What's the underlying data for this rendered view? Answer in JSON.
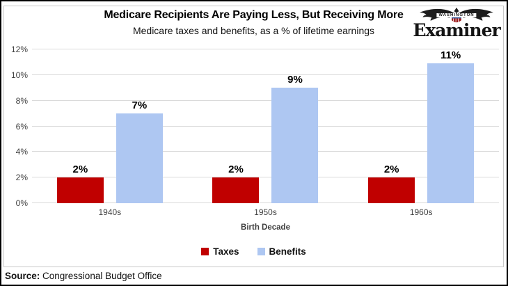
{
  "header": {
    "logo": {
      "top": "WASHINGTON",
      "name": "Examiner"
    }
  },
  "chart_data": {
    "type": "bar",
    "title": "Medicare Recipients Are Paying Less, But Receiving More",
    "subtitle": "Medicare taxes and benefits, as a % of lifetime earnings",
    "categories": [
      "1940s",
      "1950s",
      "1960s"
    ],
    "series": [
      {
        "name": "Taxes",
        "color": "#c00000",
        "values": [
          2,
          2,
          2
        ],
        "labels": [
          "2%",
          "2%",
          "2%"
        ]
      },
      {
        "name": "Benefits",
        "color": "#aec7f2",
        "values": [
          7,
          9,
          11
        ],
        "labels": [
          "7%",
          "9%",
          "11%"
        ]
      }
    ],
    "xlabel": "Birth Decade",
    "ylabel": "",
    "ylim": [
      0,
      12
    ],
    "yticks": [
      "0%",
      "2%",
      "4%",
      "6%",
      "8%",
      "10%",
      "12%"
    ],
    "grid": true,
    "gridline_color": "#d9d9d9",
    "legend_position": "bottom"
  },
  "footer": {
    "source_label": "Source:",
    "source_text": "Congressional Budget Office"
  }
}
